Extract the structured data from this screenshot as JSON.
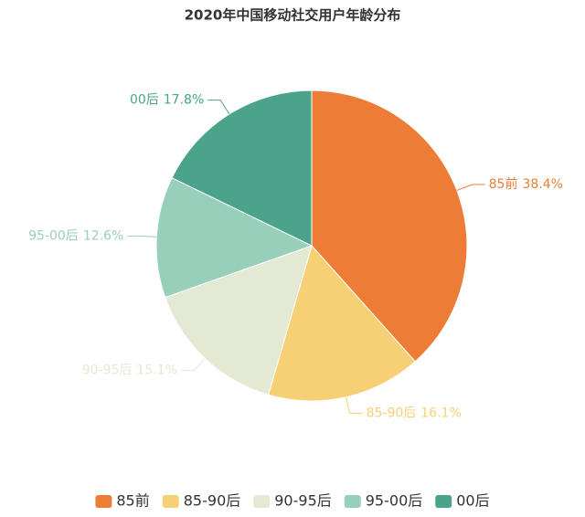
{
  "chart_data": {
    "type": "pie",
    "title": "2020年中国移动社交用户年龄分布",
    "categories": [
      "85前",
      "85-90后",
      "90-95后",
      "95-00后",
      "00后"
    ],
    "values": [
      38.4,
      16.1,
      15.1,
      12.6,
      17.8
    ],
    "value_labels": [
      "38.4%",
      "16.1%",
      "15.1%",
      "12.6%",
      "17.8%"
    ],
    "colors": [
      "#ed7d36",
      "#f7d075",
      "#e3e9d3",
      "#98cfbb",
      "#4aa38a"
    ],
    "legend": "bottom"
  }
}
